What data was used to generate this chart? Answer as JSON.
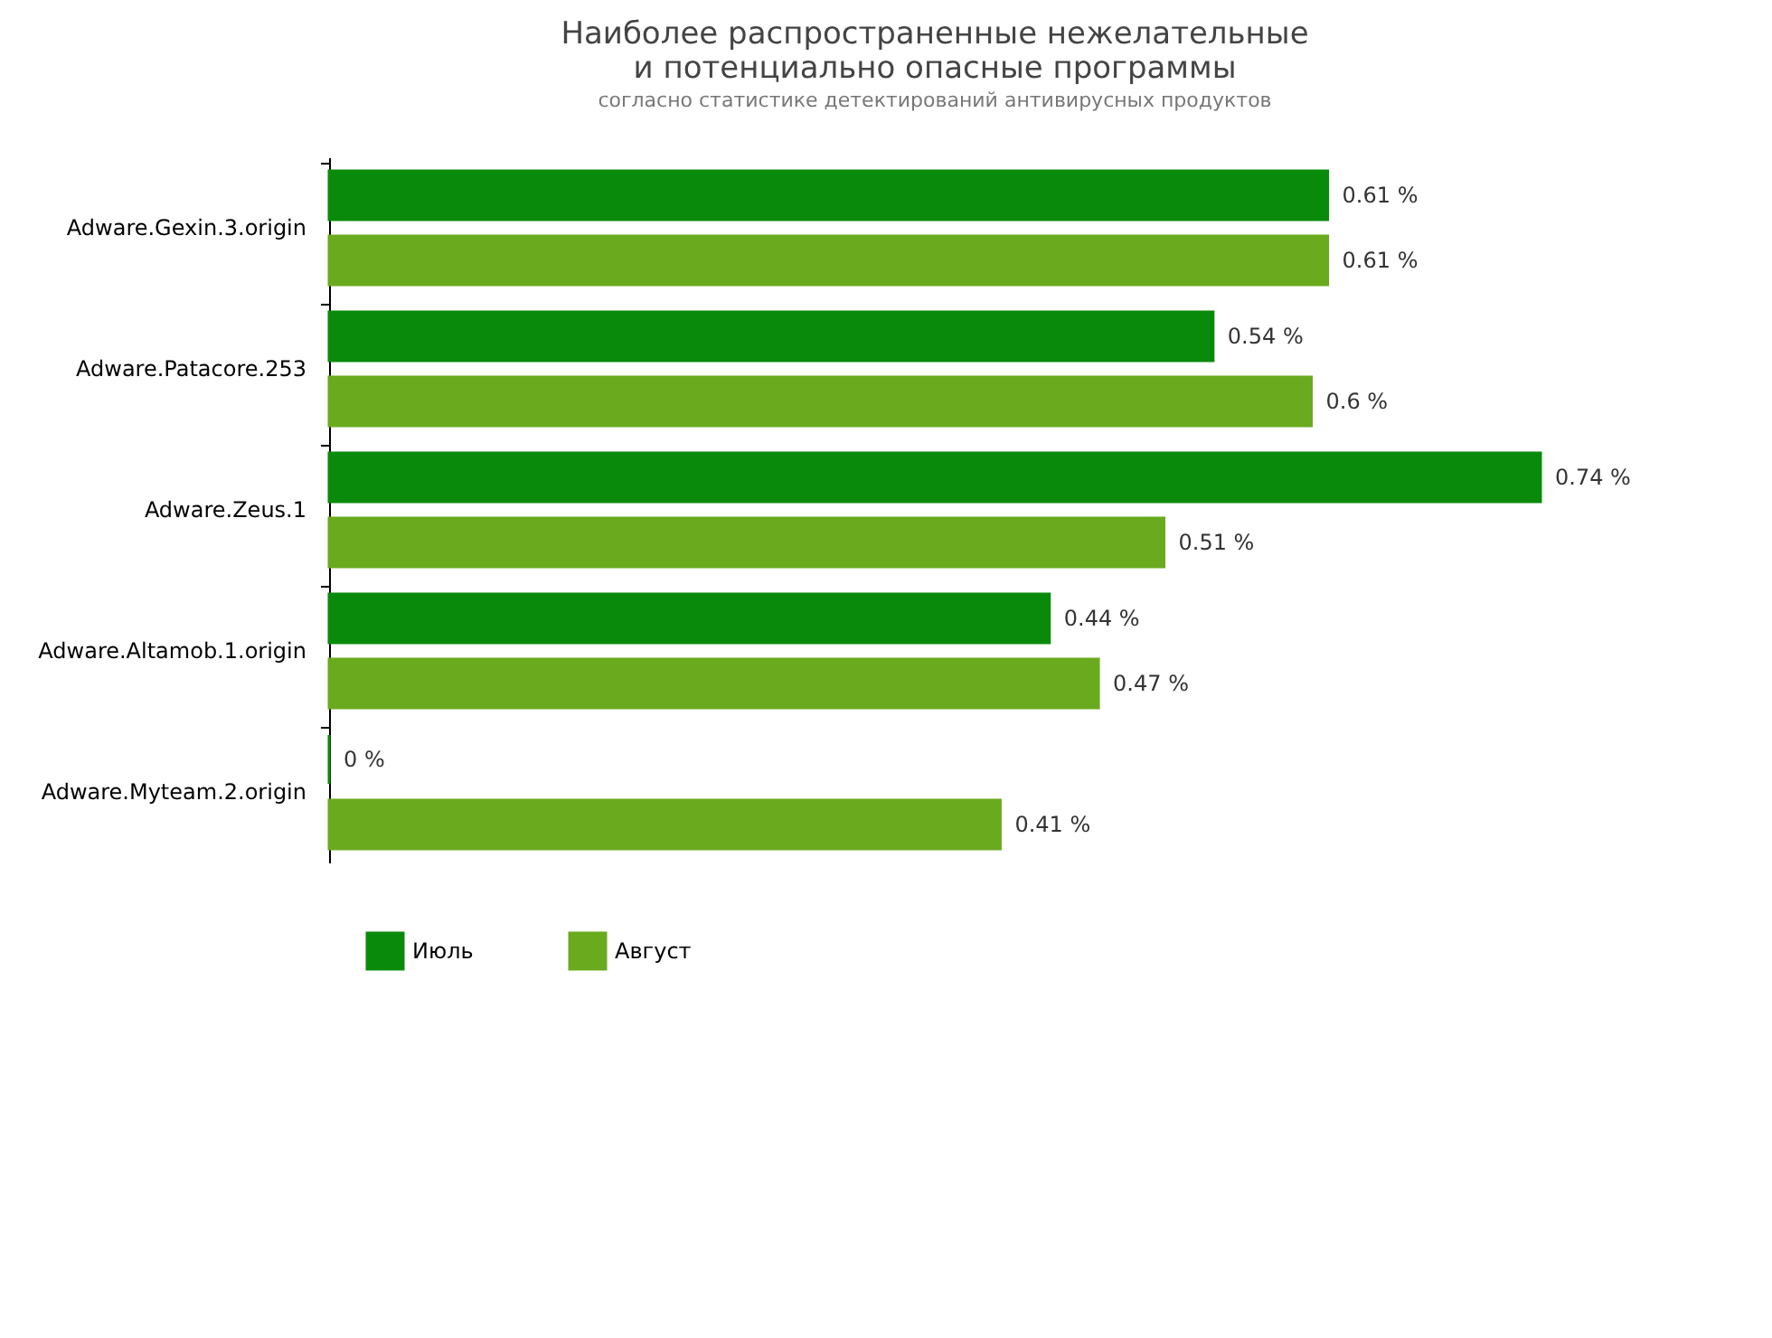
{
  "chart_data": {
    "type": "bar",
    "orientation": "horizontal",
    "title": [
      "Наиболее распространенные нежелательные",
      "и потенциально опасные программы"
    ],
    "subtitle": "согласно статистике детектирований антивирусных продуктов",
    "categories": [
      "Adware.Gexin.3.origin",
      "Adware.Patacore.253",
      "Adware.Zeus.1",
      "Adware.Altamob.1.origin",
      "Adware.Myteam.2.origin"
    ],
    "series": [
      {
        "name": "Июль",
        "color": "#0a8a0a",
        "values": [
          0.61,
          0.54,
          0.74,
          0.44,
          0
        ],
        "value_labels": [
          "0.61 %",
          "0.54 %",
          "0.74 %",
          "0.44 %",
          "0 %"
        ]
      },
      {
        "name": "Август",
        "color": "#6aaa1e",
        "values": [
          0.61,
          0.6,
          0.51,
          0.47,
          0.41
        ],
        "value_labels": [
          "0.61 %",
          "0.6 %",
          "0.51 %",
          "0.47 %",
          "0.41 %"
        ]
      }
    ],
    "legend": "bottom left",
    "grid": false
  }
}
